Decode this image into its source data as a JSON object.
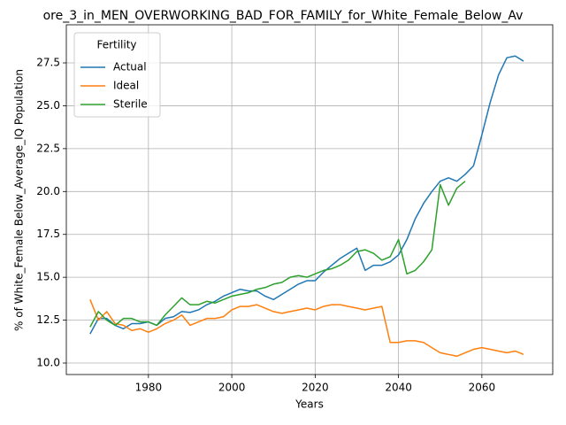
{
  "chart_data": {
    "type": "line",
    "title": "ore_3_in_MEN_OVERWORKING_BAD_FOR_FAMILY_for_White_Female_Below_Av",
    "xlabel": "Years",
    "ylabel": "% of White_Female Below_Average_IQ Population",
    "legend_title": "Fertility",
    "legend": "upper left",
    "grid": true,
    "x": [
      1966,
      1968,
      1970,
      1972,
      1974,
      1976,
      1978,
      1980,
      1982,
      1984,
      1986,
      1988,
      1990,
      1992,
      1994,
      1996,
      1998,
      2000,
      2002,
      2004,
      2006,
      2008,
      2010,
      2012,
      2014,
      2016,
      2018,
      2020,
      2022,
      2024,
      2026,
      2028,
      2030,
      2032,
      2034,
      2036,
      2038,
      2040,
      2042,
      2044,
      2046,
      2048,
      2050,
      2052,
      2054,
      2056,
      2058,
      2060,
      2062,
      2064,
      2066,
      2068,
      2070
    ],
    "series": [
      {
        "name": "Actual",
        "color": "#1f77b4",
        "values": [
          11.7,
          12.6,
          12.6,
          12.2,
          12.0,
          12.3,
          12.3,
          12.4,
          12.2,
          12.6,
          12.7,
          13.0,
          12.95,
          13.1,
          13.4,
          13.6,
          13.9,
          14.1,
          14.3,
          14.2,
          14.2,
          13.9,
          13.7,
          14.0,
          14.3,
          14.6,
          14.8,
          14.8,
          15.3,
          15.7,
          16.1,
          16.4,
          16.7,
          15.4,
          15.7,
          15.7,
          15.9,
          16.3,
          17.2,
          18.4,
          19.3,
          20.0,
          20.6,
          20.8,
          20.6,
          21.0,
          21.5,
          23.3,
          25.2,
          26.8,
          27.8,
          27.9,
          27.6
        ]
      },
      {
        "name": "Ideal",
        "color": "#ff7f0e",
        "values": [
          13.7,
          12.5,
          13.0,
          12.3,
          12.2,
          11.9,
          12.0,
          11.8,
          12.0,
          12.3,
          12.5,
          12.8,
          12.2,
          12.4,
          12.6,
          12.6,
          12.7,
          13.1,
          13.3,
          13.3,
          13.4,
          13.2,
          13.0,
          12.9,
          13.0,
          13.1,
          13.2,
          13.1,
          13.3,
          13.4,
          13.4,
          13.3,
          13.2,
          13.1,
          13.2,
          13.3,
          11.2,
          11.2,
          11.3,
          11.3,
          11.2,
          10.9,
          10.6,
          10.5,
          10.4,
          10.6,
          10.8,
          10.9,
          10.8,
          10.7,
          10.6,
          10.7,
          10.5
        ]
      },
      {
        "name": "Sterile",
        "color": "#2ca02c",
        "values": [
          12.1,
          13.0,
          12.5,
          12.2,
          12.6,
          12.6,
          12.4,
          12.4,
          12.2,
          12.8,
          13.3,
          13.8,
          13.4,
          13.4,
          13.6,
          13.5,
          13.7,
          13.9,
          14.0,
          14.1,
          14.3,
          14.4,
          14.6,
          14.7,
          15.0,
          15.1,
          15.0,
          15.2,
          15.4,
          15.5,
          15.7,
          16.0,
          16.5,
          16.6,
          16.4,
          16.0,
          16.2,
          17.2,
          15.2,
          15.4,
          15.9,
          16.6,
          20.4,
          19.2,
          20.2,
          20.6,
          null,
          null,
          null,
          null,
          null,
          null,
          null
        ]
      }
    ],
    "xlim": [
      1960.3,
      2077
    ],
    "ylim": [
      9.33,
      29.72
    ],
    "xticks": [
      1980,
      2000,
      2020,
      2040,
      2060
    ],
    "yticks": [
      {
        "value": 10,
        "label": "10.0"
      },
      12.5,
      {
        "value": 15,
        "label": "15.0"
      },
      17.5,
      {
        "value": 20,
        "label": "20.0"
      },
      22.5,
      {
        "value": 25,
        "label": "25.0"
      },
      27.5
    ]
  }
}
